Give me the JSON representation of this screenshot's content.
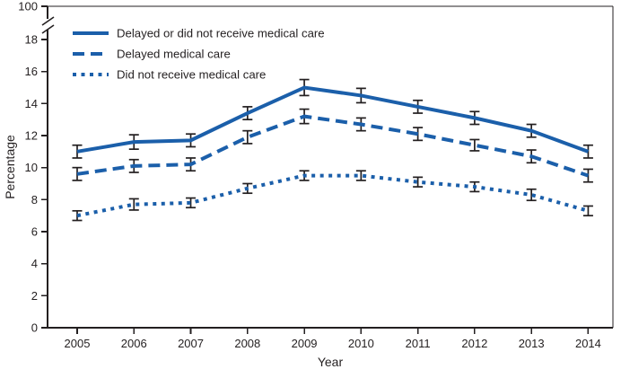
{
  "chart_data": {
    "type": "line",
    "title": "",
    "x": [
      "2005",
      "2006",
      "2007",
      "2008",
      "2009",
      "2010",
      "2011",
      "2012",
      "2013",
      "2014"
    ],
    "xlabel": "Year",
    "ylabel": "Percentage",
    "ylim": [
      0,
      18
    ],
    "y_tick_step": 2,
    "y_axis_break": {
      "upper_label": "100"
    },
    "grid": false,
    "legend_position": "top-left",
    "series": [
      {
        "name": "Delayed or did not receive medical care",
        "line_style": "solid",
        "values": [
          11.0,
          11.6,
          11.7,
          13.4,
          15.0,
          14.5,
          13.8,
          13.1,
          12.3,
          11.0
        ],
        "error": [
          0.4,
          0.45,
          0.4,
          0.4,
          0.5,
          0.45,
          0.4,
          0.4,
          0.4,
          0.4
        ]
      },
      {
        "name": "Delayed medical care",
        "line_style": "dashed",
        "values": [
          9.6,
          10.1,
          10.2,
          11.9,
          13.2,
          12.7,
          12.1,
          11.4,
          10.7,
          9.5
        ],
        "error": [
          0.4,
          0.4,
          0.4,
          0.4,
          0.45,
          0.4,
          0.4,
          0.35,
          0.4,
          0.4
        ]
      },
      {
        "name": "Did not receive medical care",
        "line_style": "dotted",
        "values": [
          7.0,
          7.7,
          7.8,
          8.7,
          9.5,
          9.5,
          9.1,
          8.8,
          8.3,
          7.3
        ],
        "error": [
          0.3,
          0.35,
          0.3,
          0.3,
          0.3,
          0.3,
          0.3,
          0.3,
          0.35,
          0.3
        ]
      }
    ],
    "colors": {
      "line": "#1B5FAA",
      "axis": "#231F20",
      "error_bar": "#231F20",
      "text": "#231F20",
      "background": "#FFFFFF"
    }
  }
}
